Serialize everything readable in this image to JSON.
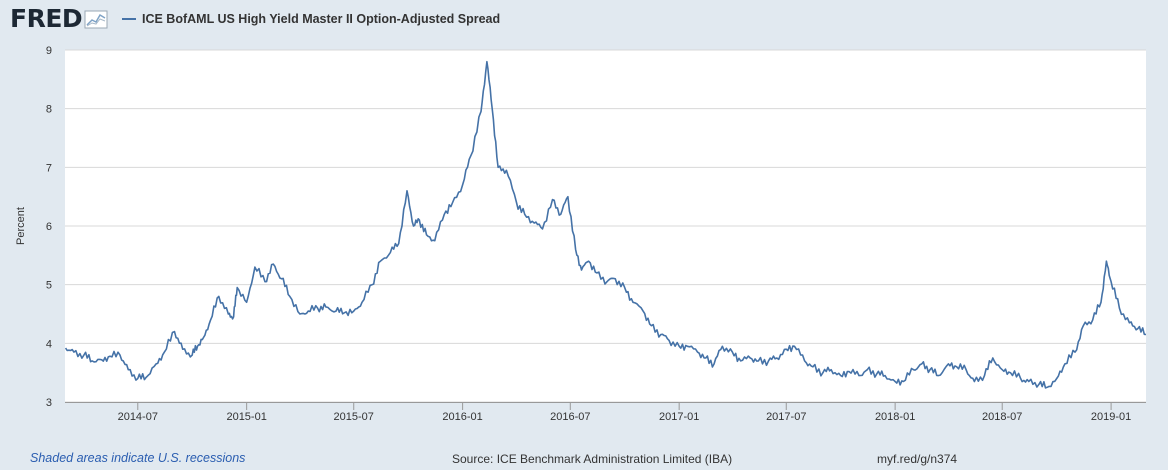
{
  "brand": {
    "logo_text": "FRED"
  },
  "legend": {
    "label": "ICE BofAML US High Yield Master II Option-Adjusted Spread"
  },
  "footer": {
    "recession_note": "Shaded areas indicate U.S. recessions",
    "source": "Source: ICE Benchmark Administration Limited (IBA)",
    "link": "myf.red/g/n374"
  },
  "colors": {
    "series": "#4572a7",
    "background": "#e1e9f0",
    "plot_bg": "#ffffff",
    "grid": "#d8d8d8",
    "logo": "#1d2834"
  },
  "chart_data": {
    "type": "line",
    "title": "",
    "xlabel": "",
    "ylabel": "Percent",
    "ylim": [
      3,
      9
    ],
    "xlim": [
      "2014-02-28",
      "2019-03-01"
    ],
    "grid": true,
    "legend_position": "top-left",
    "y_ticks": [
      "3",
      "4",
      "5",
      "6",
      "7",
      "8",
      "9"
    ],
    "x_ticks": [
      "2014-07",
      "2015-01",
      "2015-07",
      "2016-01",
      "2016-07",
      "2017-01",
      "2017-07",
      "2018-01",
      "2018-07",
      "2019-01"
    ],
    "series": [
      {
        "name": "ICE BofAML US High Yield Master II Option-Adjusted Spread",
        "x": [
          "2014-03-01",
          "2014-03-15",
          "2014-04-01",
          "2014-04-15",
          "2014-05-01",
          "2014-05-15",
          "2014-06-01",
          "2014-06-15",
          "2014-07-01",
          "2014-07-15",
          "2014-08-01",
          "2014-08-15",
          "2014-09-01",
          "2014-09-15",
          "2014-10-01",
          "2014-10-10",
          "2014-10-20",
          "2014-11-01",
          "2014-11-15",
          "2014-12-01",
          "2014-12-10",
          "2014-12-16",
          "2015-01-01",
          "2015-01-15",
          "2015-02-01",
          "2015-02-15",
          "2015-03-01",
          "2015-03-15",
          "2015-04-01",
          "2015-04-15",
          "2015-05-01",
          "2015-05-15",
          "2015-06-01",
          "2015-06-15",
          "2015-07-01",
          "2015-07-15",
          "2015-08-01",
          "2015-08-15",
          "2015-09-01",
          "2015-09-15",
          "2015-09-29",
          "2015-10-10",
          "2015-10-20",
          "2015-11-01",
          "2015-11-15",
          "2015-12-01",
          "2015-12-15",
          "2016-01-01",
          "2016-01-15",
          "2016-02-01",
          "2016-02-11",
          "2016-02-20",
          "2016-03-01",
          "2016-03-15",
          "2016-04-01",
          "2016-04-15",
          "2016-05-01",
          "2016-05-15",
          "2016-06-01",
          "2016-06-15",
          "2016-06-27",
          "2016-07-10",
          "2016-07-20",
          "2016-08-01",
          "2016-08-15",
          "2016-09-01",
          "2016-09-15",
          "2016-10-01",
          "2016-10-15",
          "2016-11-01",
          "2016-11-15",
          "2016-12-01",
          "2016-12-15",
          "2017-01-01",
          "2017-01-15",
          "2017-02-01",
          "2017-02-15",
          "2017-03-01",
          "2017-03-15",
          "2017-04-01",
          "2017-04-15",
          "2017-05-01",
          "2017-05-15",
          "2017-06-01",
          "2017-06-15",
          "2017-07-01",
          "2017-07-15",
          "2017-08-01",
          "2017-08-15",
          "2017-09-01",
          "2017-09-15",
          "2017-10-01",
          "2017-10-15",
          "2017-11-01",
          "2017-11-15",
          "2017-12-01",
          "2017-12-15",
          "2018-01-01",
          "2018-01-15",
          "2018-02-01",
          "2018-02-15",
          "2018-03-01",
          "2018-03-15",
          "2018-04-01",
          "2018-04-15",
          "2018-05-01",
          "2018-05-15",
          "2018-06-01",
          "2018-06-15",
          "2018-07-01",
          "2018-07-15",
          "2018-08-01",
          "2018-08-15",
          "2018-09-01",
          "2018-09-15",
          "2018-10-01",
          "2018-10-15",
          "2018-11-01",
          "2018-11-15",
          "2018-12-01",
          "2018-12-15",
          "2018-12-24",
          "2019-01-01",
          "2019-01-15",
          "2019-02-01",
          "2019-02-15",
          "2019-03-01"
        ],
        "values": [
          3.92,
          3.85,
          3.8,
          3.7,
          3.72,
          3.78,
          3.8,
          3.55,
          3.4,
          3.42,
          3.65,
          3.85,
          4.2,
          3.9,
          3.8,
          3.95,
          4.1,
          4.4,
          4.8,
          4.5,
          4.45,
          4.95,
          4.7,
          5.3,
          5.05,
          5.35,
          5.1,
          4.8,
          4.5,
          4.55,
          4.6,
          4.62,
          4.55,
          4.52,
          4.55,
          4.7,
          5.0,
          5.4,
          5.55,
          5.7,
          6.6,
          6.0,
          6.1,
          5.85,
          5.75,
          6.2,
          6.4,
          6.7,
          7.2,
          7.95,
          8.8,
          8.0,
          7.0,
          6.95,
          6.4,
          6.2,
          6.05,
          5.95,
          6.45,
          6.2,
          6.5,
          5.6,
          5.25,
          5.4,
          5.2,
          5.05,
          5.1,
          4.95,
          4.7,
          4.55,
          4.3,
          4.15,
          4.05,
          3.95,
          3.95,
          3.85,
          3.75,
          3.65,
          3.95,
          3.85,
          3.7,
          3.75,
          3.7,
          3.7,
          3.75,
          3.9,
          3.95,
          3.7,
          3.6,
          3.5,
          3.55,
          3.45,
          3.52,
          3.45,
          3.55,
          3.48,
          3.45,
          3.35,
          3.35,
          3.55,
          3.65,
          3.55,
          3.45,
          3.65,
          3.6,
          3.55,
          3.35,
          3.45,
          3.75,
          3.55,
          3.5,
          3.4,
          3.35,
          3.3,
          3.25,
          3.4,
          3.65,
          3.85,
          4.3,
          4.4,
          4.7,
          5.4,
          5.05,
          4.6,
          4.35,
          4.25,
          4.15
        ]
      }
    ]
  }
}
